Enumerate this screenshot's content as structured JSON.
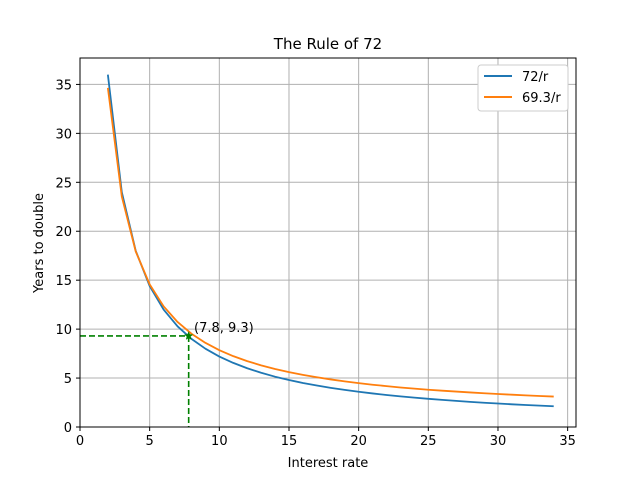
{
  "chart_data": {
    "type": "line",
    "title": "The Rule of 72",
    "xlabel": "Interest rate",
    "ylabel": "Years to double",
    "xlim": [
      0,
      35.6
    ],
    "ylim": [
      0,
      37.7
    ],
    "xticks": [
      0,
      5,
      10,
      15,
      20,
      25,
      30,
      35
    ],
    "yticks": [
      0,
      5,
      10,
      15,
      20,
      25,
      30,
      35
    ],
    "grid": true,
    "legend_position": "top-right",
    "x": [
      2,
      3,
      4,
      5,
      6,
      7,
      8,
      9,
      10,
      11,
      12,
      13,
      14,
      15,
      16,
      17,
      18,
      19,
      20,
      21,
      22,
      23,
      24,
      25,
      26,
      27,
      28,
      29,
      30,
      31,
      32,
      33,
      34
    ],
    "series": [
      {
        "name": "72/r",
        "color": "#1f77b4",
        "values": [
          36.0,
          24.0,
          18.0,
          14.4,
          12.0,
          10.29,
          9.0,
          8.0,
          7.2,
          6.55,
          6.0,
          5.54,
          5.14,
          4.8,
          4.5,
          4.24,
          4.0,
          3.79,
          3.6,
          3.43,
          3.27,
          3.13,
          3.0,
          2.88,
          2.77,
          2.67,
          2.57,
          2.48,
          2.4,
          2.32,
          2.25,
          2.18,
          2.12
        ]
      },
      {
        "name": "69.3/r",
        "color": "#ff7f0e",
        "values": [
          34.65,
          23.55,
          17.93,
          14.57,
          12.33,
          10.73,
          9.53,
          8.6,
          7.85,
          7.24,
          6.73,
          6.3,
          5.93,
          5.61,
          5.33,
          5.08,
          4.86,
          4.66,
          4.48,
          4.32,
          4.18,
          4.04,
          3.92,
          3.81,
          3.71,
          3.62,
          3.53,
          3.45,
          3.37,
          3.3,
          3.23,
          3.17,
          3.11
        ]
      }
    ],
    "annotation": {
      "text": "(7.8, 9.3)",
      "x": 7.8,
      "y": 9.3,
      "color": "#008000"
    }
  }
}
